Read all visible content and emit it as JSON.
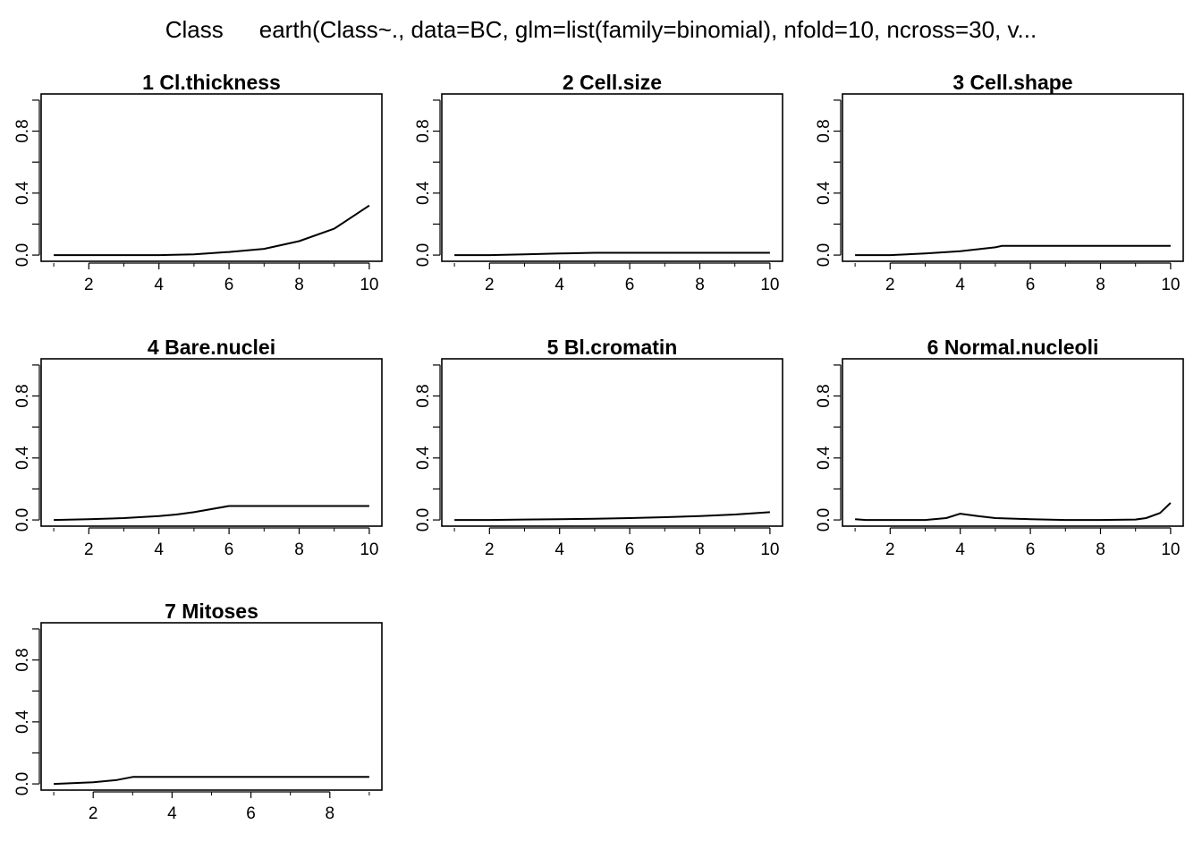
{
  "header": {
    "response": "Class",
    "call": "earth(Class~., data=BC, glm=list(family=binomial), nfold=10, ncross=30, v..."
  },
  "chart_data": [
    {
      "type": "line",
      "title": "1  Cl.thickness",
      "x": [
        1,
        2,
        3,
        4,
        5,
        6,
        7,
        8,
        9,
        10
      ],
      "y": [
        0.0,
        0.0,
        0.0,
        0.0,
        0.005,
        0.02,
        0.04,
        0.09,
        0.17,
        0.32
      ],
      "xlim": [
        1,
        10
      ],
      "ylim": [
        0,
        1
      ],
      "xticks": [
        "2",
        "4",
        "6",
        "8",
        "10"
      ],
      "yticks": [
        "0.0",
        "0.4",
        "0.8"
      ]
    },
    {
      "type": "line",
      "title": "2  Cell.size",
      "x": [
        1,
        2,
        3,
        4,
        5,
        6,
        7,
        8,
        9,
        10
      ],
      "y": [
        0.0,
        0.0,
        0.005,
        0.01,
        0.015,
        0.015,
        0.015,
        0.015,
        0.015,
        0.015
      ],
      "xlim": [
        1,
        10
      ],
      "ylim": [
        0,
        1
      ],
      "xticks": [
        "2",
        "4",
        "6",
        "8",
        "10"
      ],
      "yticks": [
        "0.0",
        "0.4",
        "0.8"
      ]
    },
    {
      "type": "line",
      "title": "3  Cell.shape",
      "x": [
        1,
        2,
        3,
        4,
        5,
        5.2,
        6,
        7,
        8,
        9,
        10
      ],
      "y": [
        0.0,
        0.0,
        0.01,
        0.025,
        0.05,
        0.06,
        0.06,
        0.06,
        0.06,
        0.06,
        0.06
      ],
      "xlim": [
        1,
        10
      ],
      "ylim": [
        0,
        1
      ],
      "xticks": [
        "2",
        "4",
        "6",
        "8",
        "10"
      ],
      "yticks": [
        "0.0",
        "0.4",
        "0.8"
      ]
    },
    {
      "type": "line",
      "title": "4  Bare.nuclei",
      "x": [
        1,
        2,
        3,
        4,
        4.5,
        5,
        6,
        7,
        8,
        9,
        10
      ],
      "y": [
        0.0,
        0.005,
        0.012,
        0.025,
        0.035,
        0.05,
        0.09,
        0.09,
        0.09,
        0.09,
        0.09
      ],
      "xlim": [
        1,
        10
      ],
      "ylim": [
        0,
        1
      ],
      "xticks": [
        "2",
        "4",
        "6",
        "8",
        "10"
      ],
      "yticks": [
        "0.0",
        "0.4",
        "0.8"
      ]
    },
    {
      "type": "line",
      "title": "5  Bl.cromatin",
      "x": [
        1,
        2,
        3,
        4,
        5,
        6,
        7,
        8,
        9,
        10
      ],
      "y": [
        0.0,
        0.0,
        0.003,
        0.005,
        0.008,
        0.012,
        0.018,
        0.025,
        0.035,
        0.05
      ],
      "xlim": [
        1,
        10
      ],
      "ylim": [
        0,
        1
      ],
      "xticks": [
        "2",
        "4",
        "6",
        "8",
        "10"
      ],
      "yticks": [
        "0.0",
        "0.4",
        "0.8"
      ]
    },
    {
      "type": "line",
      "title": "6  Normal.nucleoli",
      "x": [
        1,
        1.3,
        2,
        3,
        3.6,
        4,
        4.5,
        5,
        6,
        7,
        8,
        9,
        9.3,
        9.7,
        10
      ],
      "y": [
        0.005,
        0.0,
        0.0,
        0.0,
        0.012,
        0.04,
        0.025,
        0.012,
        0.005,
        0.0,
        0.0,
        0.003,
        0.012,
        0.045,
        0.11
      ],
      "xlim": [
        1,
        10
      ],
      "ylim": [
        0,
        1
      ],
      "xticks": [
        "2",
        "4",
        "6",
        "8",
        "10"
      ],
      "yticks": [
        "0.0",
        "0.4",
        "0.8"
      ]
    },
    {
      "type": "line",
      "title": "7  Mitoses",
      "x": [
        1,
        2,
        2.6,
        3,
        4,
        5,
        6,
        7,
        8,
        9
      ],
      "y": [
        0.0,
        0.01,
        0.025,
        0.045,
        0.045,
        0.045,
        0.045,
        0.045,
        0.045,
        0.045
      ],
      "xlim": [
        1,
        9
      ],
      "ylim": [
        0,
        1
      ],
      "xticks": [
        "2",
        "4",
        "6",
        "8"
      ],
      "yticks": [
        "0.0",
        "0.4",
        "0.8"
      ]
    }
  ]
}
